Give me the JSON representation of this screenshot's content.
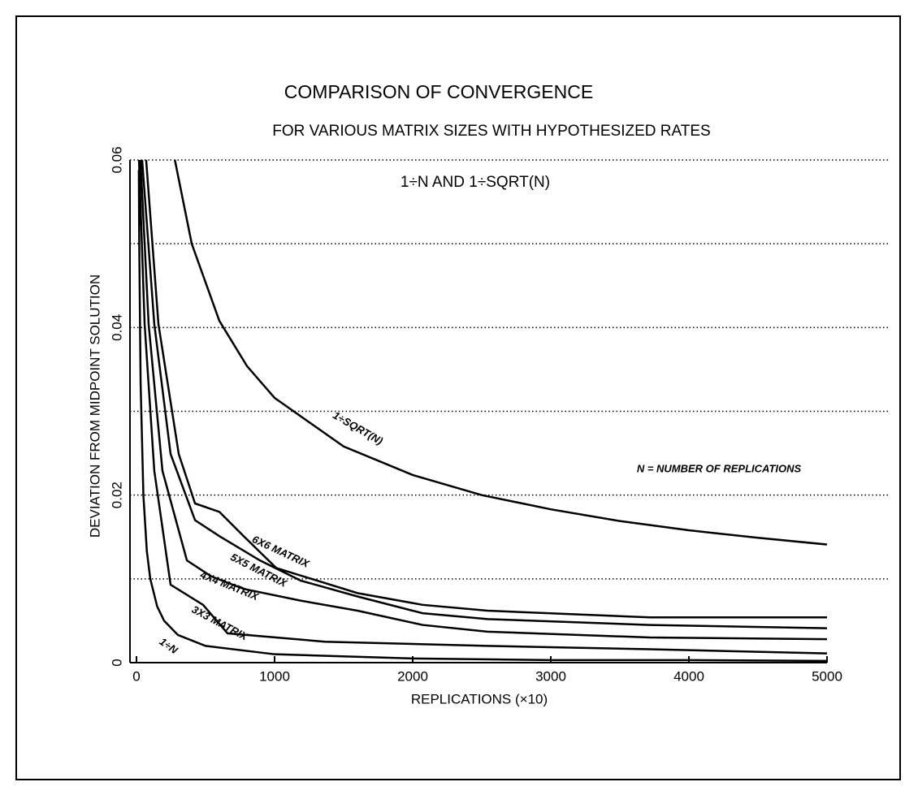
{
  "chart_data": {
    "type": "line",
    "title": "COMPARISON OF CONVERGENCE",
    "subtitle": "FOR VARIOUS MATRIX SIZES WITH HYPOTHESIZED RATES",
    "annotation": "1÷N AND 1÷SQRT(N)",
    "note": "N = NUMBER OF REPLICATIONS",
    "xlabel": "REPLICATIONS (×10)",
    "ylabel": "DEVIATION FROM MIDPOINT SOLUTION",
    "xlim": [
      0,
      5000
    ],
    "xticks": [
      0,
      1000,
      2000,
      3000,
      4000,
      5000
    ],
    "ylim": [
      0,
      0.06
    ],
    "yticks": [
      0,
      0.02,
      0.04,
      0.06
    ],
    "minor_yticks": [
      0.01,
      0.03,
      0.05
    ],
    "grid": true,
    "series": [
      {
        "name": "1÷SQRT(N)",
        "color": "#000",
        "x": [
          278,
          400,
          600,
          800,
          1000,
          1500,
          2000,
          2500,
          3000,
          3500,
          4000,
          4500,
          5000
        ],
        "values": [
          0.06,
          0.05,
          0.0408,
          0.0354,
          0.0316,
          0.0258,
          0.0224,
          0.02,
          0.0183,
          0.0169,
          0.0158,
          0.0149,
          0.0141
        ]
      },
      {
        "name": "6X6 MATRIX",
        "color": "#000",
        "x": [
          70,
          159,
          306,
          424,
          600,
          776,
          1012,
          1247,
          1600,
          2071,
          2541,
          3718,
          5000
        ],
        "values": [
          0.06,
          0.0404,
          0.0249,
          0.019,
          0.018,
          0.0151,
          0.0113,
          0.0101,
          0.0083,
          0.0069,
          0.0062,
          0.0054,
          0.0054
        ]
      },
      {
        "name": "5X5 MATRIX",
        "color": "#000",
        "x": [
          41,
          129,
          247,
          424,
          600,
          894,
          1188,
          1600,
          2071,
          2541,
          3718,
          5000
        ],
        "values": [
          0.06,
          0.0404,
          0.0249,
          0.017,
          0.0151,
          0.0122,
          0.0098,
          0.0079,
          0.0059,
          0.0052,
          0.0045,
          0.0041
        ]
      },
      {
        "name": "4X4 MATRIX",
        "color": "#000",
        "x": [
          29,
          88,
          188,
          365,
          541,
          776,
          1188,
          1600,
          2071,
          2541,
          3718,
          5000
        ],
        "values": [
          0.06,
          0.0404,
          0.0229,
          0.0122,
          0.0103,
          0.0088,
          0.0074,
          0.0062,
          0.0045,
          0.0037,
          0.003,
          0.0028
        ]
      },
      {
        "name": "3X3 MATRIX",
        "color": "#000",
        "x": [
          18,
          59,
          129,
          247,
          482,
          659,
          1365,
          2541,
          3718,
          5000
        ],
        "values": [
          0.06,
          0.0404,
          0.0229,
          0.0093,
          0.0069,
          0.0035,
          0.0025,
          0.002,
          0.0016,
          0.0011
        ]
      },
      {
        "name": "1÷N",
        "color": "#000",
        "x": [
          17,
          20,
          30,
          50,
          75,
          100,
          150,
          200,
          300,
          500,
          1000,
          2000,
          3000,
          4000,
          5000
        ],
        "values": [
          0.0588,
          0.05,
          0.0333,
          0.02,
          0.0133,
          0.01,
          0.0067,
          0.005,
          0.0033,
          0.002,
          0.001,
          0.0005,
          0.0003,
          0.0003,
          0.0002
        ]
      }
    ]
  }
}
